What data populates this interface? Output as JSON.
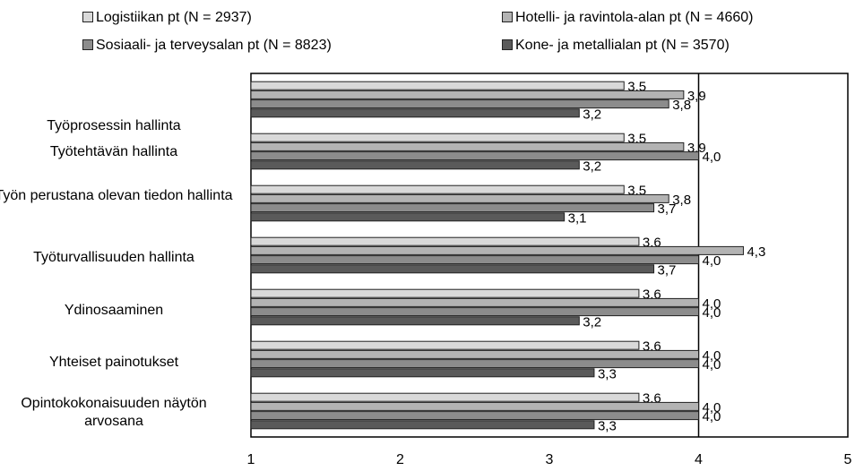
{
  "chart_data": {
    "type": "bar",
    "orientation": "horizontal",
    "categories": [
      "Työprosessin hallinta",
      "Työtehtävän hallinta",
      "Työn perustana olevan tiedon hallinta",
      "Työturvallisuuden hallinta",
      "Ydinosaaminen",
      "Yhteiset painotukset",
      "Opintokokonaisuuden näytön arvosana"
    ],
    "series": [
      {
        "name": "Logistiikan pt (N = 2937)",
        "color": "#d9d9d9",
        "values": [
          3.5,
          3.5,
          3.5,
          3.6,
          3.6,
          3.6,
          3.6
        ],
        "labels": [
          "3,5",
          "3,5",
          "3,5",
          "3,6",
          "3,6",
          "3,6",
          "3,6"
        ]
      },
      {
        "name": "Hotelli- ja ravintola-alan pt (N = 4660)",
        "color": "#b3b3b3",
        "values": [
          3.9,
          3.9,
          3.8,
          4.3,
          4.0,
          4.0,
          4.0
        ],
        "labels": [
          "3,9",
          "3,9",
          "3,8",
          "4,3",
          "4,0",
          "4,0",
          "4,0"
        ]
      },
      {
        "name": "Sosiaali- ja terveysalan pt (N = 8823)",
        "color": "#8c8c8c",
        "values": [
          3.8,
          4.0,
          3.7,
          4.0,
          4.0,
          4.0,
          4.0
        ],
        "labels": [
          "3,8",
          "4,0",
          "3,7",
          "4,0",
          "4,0",
          "4,0",
          "4,0"
        ]
      },
      {
        "name": "Kone- ja metallialan pt (N = 3570)",
        "color": "#5a5a5a",
        "values": [
          3.2,
          3.2,
          3.1,
          3.7,
          3.2,
          3.3,
          3.3
        ],
        "labels": [
          "3,2",
          "3,2",
          "3,1",
          "3,7",
          "3,2",
          "3,3",
          "3,3"
        ]
      }
    ],
    "xlim": [
      1,
      5
    ],
    "xticks": [
      "1",
      "2",
      "3",
      "4",
      "5"
    ],
    "legend_position": "top",
    "grid": false
  }
}
